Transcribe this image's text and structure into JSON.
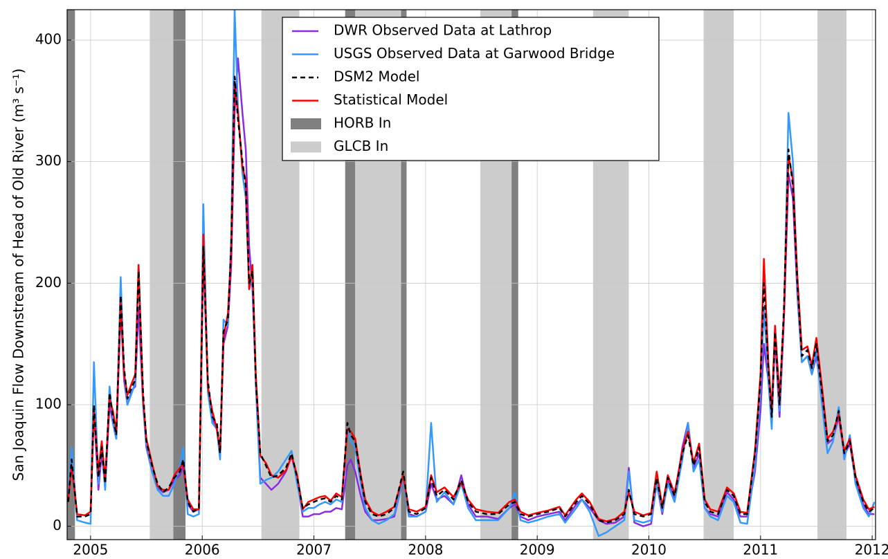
{
  "chart_data": {
    "type": "line",
    "ylabel": "San Joaquin Flow Downstream of Head of Old River (m³ s⁻¹)",
    "xlim": [
      2004.79,
      2012.03
    ],
    "xticks": [
      2005,
      2006,
      2007,
      2008,
      2009,
      2010,
      2011,
      2012
    ],
    "ylim": [
      -11,
      425
    ],
    "yticks": [
      0,
      100,
      200,
      300,
      400
    ],
    "grid": true,
    "legend": "upper center",
    "x": [
      2004.8,
      2004.83,
      2004.88,
      2004.95,
      2005.0,
      2005.03,
      2005.07,
      2005.1,
      2005.13,
      2005.17,
      2005.2,
      2005.23,
      2005.27,
      2005.3,
      2005.33,
      2005.37,
      2005.4,
      2005.43,
      2005.47,
      2005.5,
      2005.55,
      2005.6,
      2005.65,
      2005.7,
      2005.75,
      2005.8,
      2005.83,
      2005.87,
      2005.92,
      2005.97,
      2006.01,
      2006.05,
      2006.09,
      2006.13,
      2006.16,
      2006.19,
      2006.23,
      2006.26,
      2006.29,
      2006.32,
      2006.36,
      2006.39,
      2006.42,
      2006.45,
      2006.48,
      2006.52,
      2006.57,
      2006.62,
      2006.68,
      2006.75,
      2006.8,
      2006.85,
      2006.9,
      2006.95,
      2007.0,
      2007.05,
      2007.1,
      2007.15,
      2007.2,
      2007.25,
      2007.3,
      2007.33,
      2007.37,
      2007.42,
      2007.46,
      2007.52,
      2007.58,
      2007.65,
      2007.72,
      2007.8,
      2007.85,
      2007.92,
      2008.0,
      2008.05,
      2008.1,
      2008.17,
      2008.25,
      2008.32,
      2008.38,
      2008.45,
      2008.55,
      2008.65,
      2008.75,
      2008.8,
      2008.85,
      2008.92,
      2009.0,
      2009.1,
      2009.2,
      2009.25,
      2009.35,
      2009.4,
      2009.47,
      2009.55,
      2009.62,
      2009.7,
      2009.78,
      2009.82,
      2009.87,
      2009.95,
      2010.02,
      2010.07,
      2010.12,
      2010.17,
      2010.23,
      2010.3,
      2010.35,
      2010.4,
      2010.45,
      2010.5,
      2010.55,
      2010.62,
      2010.7,
      2010.76,
      2010.82,
      2010.88,
      2010.95,
      2011.0,
      2011.03,
      2011.07,
      2011.1,
      2011.13,
      2011.17,
      2011.21,
      2011.25,
      2011.29,
      2011.33,
      2011.37,
      2011.42,
      2011.46,
      2011.5,
      2011.55,
      2011.6,
      2011.65,
      2011.7,
      2011.75,
      2011.8,
      2011.85,
      2011.92,
      2011.97,
      2012.02
    ],
    "series": [
      {
        "name": "DWR Observed Data at Lathrop",
        "color": "#8a2be2",
        "linestyle": "solid",
        "values": [
          null,
          null,
          null,
          null,
          null,
          95,
          30,
          60,
          32,
          100,
          85,
          72,
          180,
          120,
          100,
          112,
          115,
          180,
          100,
          65,
          45,
          32,
          28,
          30,
          38,
          42,
          50,
          18,
          12,
          14,
          225,
          115,
          88,
          82,
          58,
          150,
          165,
          215,
          340,
          385,
          340,
          310,
          230,
          195,
          120,
          40,
          35,
          30,
          35,
          45,
          58,
          38,
          8,
          8,
          10,
          10,
          12,
          12,
          15,
          14,
          50,
          55,
          45,
          25,
          12,
          5,
          5,
          6,
          8,
          40,
          10,
          8,
          12,
          35,
          22,
          25,
          18,
          42,
          18,
          8,
          8,
          6,
          15,
          18,
          8,
          5,
          8,
          10,
          12,
          5,
          18,
          22,
          15,
          5,
          2,
          3,
          8,
          48,
          3,
          0,
          2,
          35,
          10,
          38,
          22,
          65,
          85,
          48,
          60,
          15,
          10,
          8,
          28,
          22,
          8,
          8,
          45,
          95,
          150,
          120,
          85,
          155,
          90,
          170,
          290,
          270,
          190,
          135,
          140,
          125,
          140,
          105,
          68,
          72,
          90,
          58,
          68,
          38,
          18,
          10,
          10
        ]
      },
      {
        "name": "USGS Observed Data at Garwood Bridge",
        "color": "#3399ff",
        "linestyle": "solid",
        "values": [
          25,
          65,
          5,
          3,
          2,
          135,
          35,
          70,
          30,
          115,
          85,
          72,
          205,
          125,
          100,
          110,
          118,
          215,
          100,
          68,
          45,
          30,
          25,
          25,
          35,
          50,
          65,
          10,
          8,
          10,
          265,
          110,
          85,
          80,
          55,
          170,
          165,
          240,
          425,
          345,
          290,
          270,
          195,
          205,
          115,
          35,
          38,
          40,
          45,
          55,
          62,
          35,
          12,
          15,
          15,
          18,
          20,
          18,
          22,
          20,
          80,
          70,
          65,
          35,
          15,
          5,
          2,
          5,
          10,
          40,
          8,
          8,
          12,
          85,
          20,
          28,
          18,
          35,
          15,
          5,
          5,
          5,
          15,
          28,
          5,
          3,
          5,
          8,
          10,
          3,
          15,
          22,
          12,
          -8,
          -5,
          0,
          5,
          45,
          5,
          3,
          5,
          35,
          12,
          35,
          20,
          55,
          85,
          45,
          55,
          15,
          8,
          5,
          25,
          20,
          3,
          2,
          50,
          110,
          180,
          120,
          80,
          165,
          95,
          175,
          340,
          300,
          195,
          135,
          140,
          125,
          145,
          100,
          60,
          70,
          98,
          55,
          75,
          35,
          15,
          8,
          20
        ]
      },
      {
        "name": "DSM2 Model",
        "color": "#000000",
        "linestyle": "dashed",
        "values": [
          20,
          55,
          8,
          8,
          10,
          100,
          40,
          65,
          35,
          110,
          90,
          75,
          190,
          130,
          105,
          115,
          120,
          210,
          110,
          70,
          50,
          35,
          28,
          32,
          40,
          45,
          55,
          20,
          12,
          15,
          230,
          120,
          90,
          85,
          60,
          160,
          170,
          230,
          370,
          335,
          300,
          280,
          200,
          210,
          120,
          60,
          50,
          40,
          42,
          48,
          60,
          40,
          15,
          18,
          20,
          22,
          23,
          20,
          25,
          22,
          85,
          75,
          70,
          40,
          20,
          10,
          8,
          10,
          15,
          45,
          12,
          10,
          15,
          40,
          25,
          30,
          22,
          38,
          20,
          12,
          10,
          10,
          18,
          20,
          10,
          8,
          10,
          12,
          15,
          8,
          20,
          25,
          18,
          5,
          3,
          5,
          10,
          30,
          10,
          8,
          10,
          40,
          15,
          40,
          25,
          60,
          75,
          50,
          65,
          20,
          12,
          10,
          30,
          25,
          10,
          10,
          60,
          120,
          200,
          130,
          90,
          160,
          100,
          180,
          310,
          280,
          200,
          140,
          145,
          130,
          150,
          110,
          70,
          75,
          95,
          60,
          70,
          40,
          20,
          12,
          15
        ]
      },
      {
        "name": "Statistical Model",
        "color": "#ff0000",
        "linestyle": "solid",
        "values": [
          22,
          50,
          10,
          9,
          12,
          95,
          45,
          70,
          38,
          105,
          95,
          78,
          185,
          125,
          108,
          118,
          125,
          215,
          105,
          72,
          52,
          33,
          30,
          30,
          42,
          48,
          52,
          22,
          14,
          14,
          240,
          115,
          95,
          80,
          62,
          155,
          175,
          225,
          365,
          340,
          295,
          285,
          195,
          215,
          125,
          58,
          52,
          42,
          40,
          46,
          58,
          42,
          14,
          20,
          22,
          24,
          25,
          21,
          27,
          24,
          80,
          78,
          72,
          42,
          22,
          12,
          9,
          12,
          16,
          42,
          14,
          12,
          16,
          42,
          28,
          32,
          24,
          36,
          22,
          14,
          12,
          11,
          20,
          22,
          12,
          9,
          11,
          13,
          16,
          9,
          22,
          27,
          20,
          6,
          4,
          6,
          12,
          28,
          12,
          9,
          11,
          45,
          16,
          42,
          27,
          62,
          78,
          52,
          68,
          22,
          14,
          12,
          32,
          27,
          12,
          11,
          62,
          125,
          220,
          135,
          95,
          165,
          105,
          175,
          305,
          285,
          205,
          145,
          148,
          132,
          155,
          115,
          72,
          78,
          92,
          62,
          72,
          42,
          22,
          14,
          16
        ]
      }
    ],
    "bands": [
      {
        "name": "HORB In",
        "color": "#808080",
        "ranges": [
          [
            2004.79,
            2004.86
          ],
          [
            2005.74,
            2005.85
          ],
          [
            2007.28,
            2007.37
          ],
          [
            2007.78,
            2007.83
          ],
          [
            2008.77,
            2008.83
          ]
        ]
      },
      {
        "name": "GLCB In",
        "color": "#cccccc",
        "ranges": [
          [
            2005.53,
            2005.74
          ],
          [
            2006.53,
            2006.87
          ],
          [
            2007.37,
            2007.78
          ],
          [
            2008.49,
            2008.77
          ],
          [
            2009.5,
            2009.82
          ],
          [
            2010.49,
            2010.76
          ],
          [
            2011.51,
            2011.77
          ]
        ]
      }
    ]
  }
}
